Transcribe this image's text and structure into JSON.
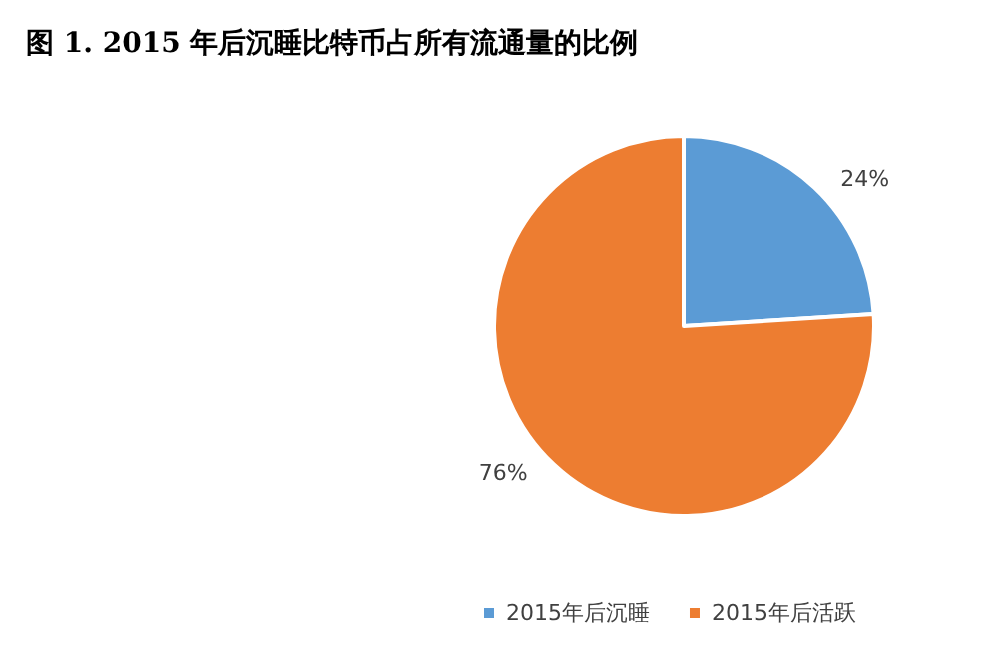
{
  "chart_data": {
    "type": "pie",
    "title": "图 1. 2015 年后沉睡比特币占所有流通量的比例",
    "categories": [
      "2015年后沉睡",
      "2015年后活跃"
    ],
    "values": [
      24,
      76
    ],
    "colors": [
      "#5b9bd5",
      "#ed7d31"
    ],
    "value_labels": [
      "24%",
      "76%"
    ],
    "legend": "bottom"
  }
}
